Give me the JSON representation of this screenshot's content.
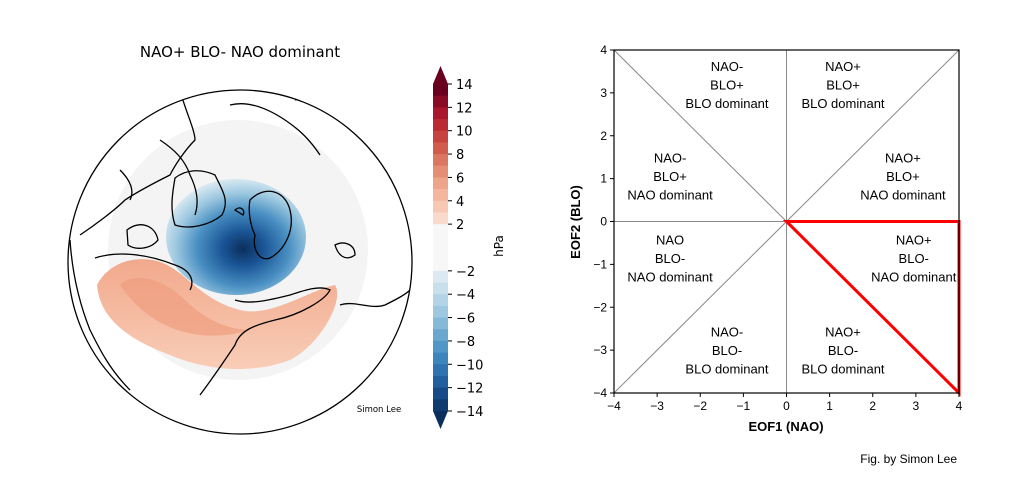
{
  "map_panel": {
    "title": "NAO+ BLO- NAO dominant",
    "credit": "Simon Lee",
    "colorbar": {
      "label": "hPa",
      "ticks": [
        "14",
        "12",
        "10",
        "8",
        "6",
        "4",
        "2",
        "−2",
        "−4",
        "−6",
        "−8",
        "−10",
        "−12",
        "−14"
      ],
      "tick_values": [
        14,
        12,
        10,
        8,
        6,
        4,
        2,
        -2,
        -4,
        -6,
        -8,
        -10,
        -12,
        -14
      ],
      "range": [
        -14,
        14
      ],
      "colors_top_to_bottom": [
        "#6a0020",
        "#8a0b25",
        "#a8172b",
        "#bb2a33",
        "#c7433f",
        "#d15c4e",
        "#db7661",
        "#e68e74",
        "#ee a48a",
        "#f4b79d",
        "#f8c9b2",
        "#fadacb",
        "#f7f7f7",
        "#f7f7f7",
        "#f7f7f7",
        "#f7f7f7",
        "#dce9f2",
        "#c8dfec",
        "#b3d4e7",
        "#9dc8e0",
        "#85b9d8",
        "#69a7cf",
        "#5096c6",
        "#3c84bc",
        "#2e72b0",
        "#215f9f",
        "#174b87",
        "#0f3b6f",
        "#0b2f5c"
      ]
    }
  },
  "chart_data": {
    "type": "diagram",
    "xlabel": "EOF1 (NAO)",
    "ylabel": "EOF2 (BLO)",
    "xlim": [
      -4,
      4
    ],
    "ylim": [
      -4,
      4
    ],
    "xticks": [
      "−4",
      "−3",
      "−2",
      "−1",
      "0",
      "1",
      "2",
      "3",
      "4"
    ],
    "yticks": [
      "4",
      "3",
      "2",
      "1",
      "0",
      "−1",
      "−2",
      "−3",
      "−4"
    ],
    "tick_values": [
      -4,
      -3,
      -2,
      -1,
      0,
      1,
      2,
      3,
      4
    ],
    "reference_lines": [
      "x=0",
      "y=0",
      "y=x",
      "y=-x"
    ],
    "regions": [
      {
        "lines": [
          "NAO-",
          "BLO+",
          "BLO dominant"
        ],
        "x": -1.38,
        "y": 3.2
      },
      {
        "lines": [
          "NAO+",
          "BLO+",
          "BLO dominant"
        ],
        "x": 1.31,
        "y": 3.2
      },
      {
        "lines": [
          "NAO-",
          "BLO+",
          "NAO dominant"
        ],
        "x": -2.7,
        "y": 1.06
      },
      {
        "lines": [
          "NAO+",
          "BLO+",
          "NAO dominant"
        ],
        "x": 2.7,
        "y": 1.06
      },
      {
        "lines": [
          "NAO",
          "BLO-",
          "NAO dominant"
        ],
        "x": -2.7,
        "y": -0.85
      },
      {
        "lines": [
          "NAO+",
          "BLO-",
          "NAO dominant"
        ],
        "x": 2.95,
        "y": -0.85
      },
      {
        "lines": [
          "NAO-",
          "BLO-",
          "BLO dominant"
        ],
        "x": -1.38,
        "y": -3.0
      },
      {
        "lines": [
          "NAO+",
          "BLO-",
          "BLO dominant"
        ],
        "x": 1.31,
        "y": -3.0
      }
    ],
    "highlighted_region": {
      "vertices": [
        [
          0,
          0
        ],
        [
          4,
          0
        ],
        [
          4,
          -4
        ]
      ],
      "color": "#ff0000"
    }
  },
  "footer_credit": "Fig. by Simon Lee"
}
